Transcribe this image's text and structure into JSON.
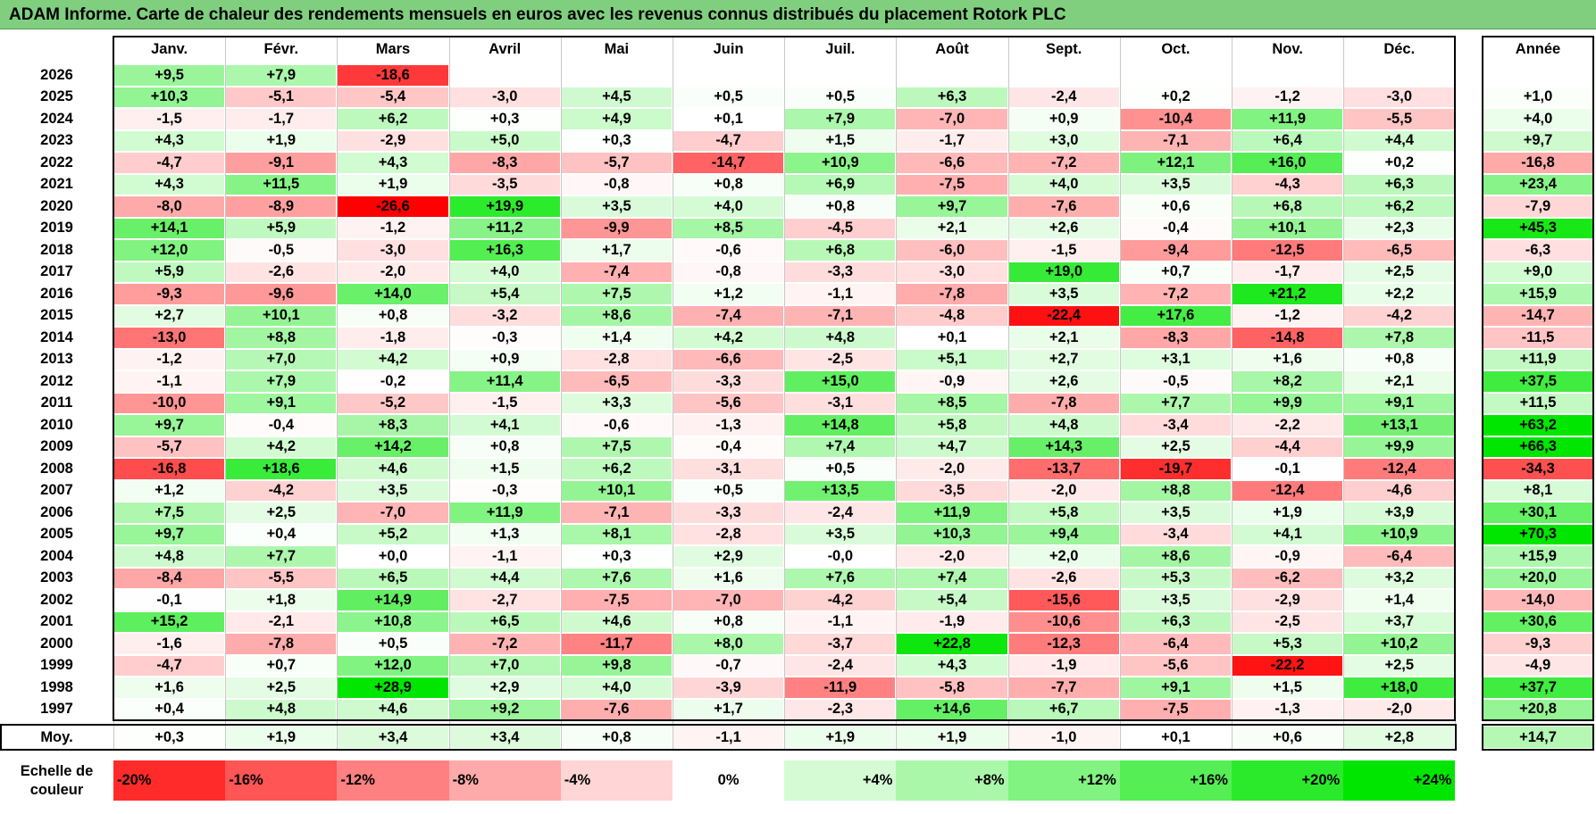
{
  "title": "ADAM Informe. Carte de chaleur des rendements mensuels en euros avec les revenus connus distribués du placement Rotork PLC",
  "chart_data": {
    "type": "heatmap",
    "title": "ADAM Informe. Carte de chaleur des rendements mensuels en euros avec les revenus connus distribués du placement Rotork PLC",
    "months": [
      "Janv.",
      "Févr.",
      "Mars",
      "Avril",
      "Mai",
      "Juin",
      "Juil.",
      "Août",
      "Sept.",
      "Oct.",
      "Nov.",
      "Déc."
    ],
    "year_header": "Année",
    "rows": [
      {
        "year": "2026",
        "values": [
          "+9,5",
          "+7,9",
          "-18,6",
          "",
          "",
          "",
          "",
          "",
          "",
          "",
          "",
          ""
        ],
        "annual": ""
      },
      {
        "year": "2025",
        "values": [
          "+10,3",
          "-5,1",
          "-5,4",
          "-3,0",
          "+4,5",
          "+0,5",
          "+0,5",
          "+6,3",
          "-2,4",
          "+0,2",
          "-1,2",
          "-3,0"
        ],
        "annual": "+1,0"
      },
      {
        "year": "2024",
        "values": [
          "-1,5",
          "-1,7",
          "+6,2",
          "+0,3",
          "+4,9",
          "+0,1",
          "+7,9",
          "-7,0",
          "+0,9",
          "-10,4",
          "+11,9",
          "-5,5"
        ],
        "annual": "+4,0"
      },
      {
        "year": "2023",
        "values": [
          "+4,3",
          "+1,9",
          "-2,9",
          "+5,0",
          "+0,3",
          "-4,7",
          "+1,5",
          "-1,7",
          "+3,0",
          "-7,1",
          "+6,4",
          "+4,4"
        ],
        "annual": "+9,7"
      },
      {
        "year": "2022",
        "values": [
          "-4,7",
          "-9,1",
          "+4,3",
          "-8,3",
          "-5,7",
          "-14,7",
          "+10,9",
          "-6,6",
          "-7,2",
          "+12,1",
          "+16,0",
          "+0,2"
        ],
        "annual": "-16,8"
      },
      {
        "year": "2021",
        "values": [
          "+4,3",
          "+11,5",
          "+1,9",
          "-3,5",
          "-0,8",
          "+0,8",
          "+6,9",
          "-7,5",
          "+4,0",
          "+3,5",
          "-4,3",
          "+6,3"
        ],
        "annual": "+23,4"
      },
      {
        "year": "2020",
        "values": [
          "-8,0",
          "-8,9",
          "-26,6",
          "+19,9",
          "+3,5",
          "+4,0",
          "+0,8",
          "+9,7",
          "-7,6",
          "+0,6",
          "+6,8",
          "+6,2"
        ],
        "annual": "-7,9"
      },
      {
        "year": "2019",
        "values": [
          "+14,1",
          "+5,9",
          "-1,2",
          "+11,2",
          "-9,9",
          "+8,5",
          "-4,5",
          "+2,1",
          "+2,6",
          "-0,4",
          "+10,1",
          "+2,3"
        ],
        "annual": "+45,3"
      },
      {
        "year": "2018",
        "values": [
          "+12,0",
          "-0,5",
          "-3,0",
          "+16,3",
          "+1,7",
          "-0,6",
          "+6,8",
          "-6,0",
          "-1,5",
          "-9,4",
          "-12,5",
          "-6,5"
        ],
        "annual": "-6,3"
      },
      {
        "year": "2017",
        "values": [
          "+5,9",
          "-2,6",
          "-2,0",
          "+4,0",
          "-7,4",
          "-0,8",
          "-3,3",
          "-3,0",
          "+19,0",
          "+0,7",
          "-1,7",
          "+2,5"
        ],
        "annual": "+9,0"
      },
      {
        "year": "2016",
        "values": [
          "-9,3",
          "-9,6",
          "+14,0",
          "+5,4",
          "+7,5",
          "+1,2",
          "-1,1",
          "-7,8",
          "+3,5",
          "-7,2",
          "+21,2",
          "+2,2"
        ],
        "annual": "+15,9"
      },
      {
        "year": "2015",
        "values": [
          "+2,7",
          "+10,1",
          "+0,8",
          "-3,2",
          "+8,6",
          "-7,4",
          "-7,1",
          "-4,8",
          "-22,4",
          "+17,6",
          "-1,2",
          "-4,2"
        ],
        "annual": "-14,7"
      },
      {
        "year": "2014",
        "values": [
          "-13,0",
          "+8,8",
          "-1,8",
          "-0,3",
          "+1,4",
          "+4,2",
          "+4,8",
          "+0,1",
          "+2,1",
          "-8,3",
          "-14,8",
          "+7,8"
        ],
        "annual": "-11,5"
      },
      {
        "year": "2013",
        "values": [
          "-1,2",
          "+7,0",
          "+4,2",
          "+0,9",
          "-2,8",
          "-6,6",
          "-2,5",
          "+5,1",
          "+2,7",
          "+3,1",
          "+1,6",
          "+0,8"
        ],
        "annual": "+11,9"
      },
      {
        "year": "2012",
        "values": [
          "-1,1",
          "+7,9",
          "-0,2",
          "+11,4",
          "-6,5",
          "-3,3",
          "+15,0",
          "-0,9",
          "+2,6",
          "-0,5",
          "+8,2",
          "+2,1"
        ],
        "annual": "+37,5"
      },
      {
        "year": "2011",
        "values": [
          "-10,0",
          "+9,1",
          "-5,2",
          "-1,5",
          "+3,3",
          "-5,6",
          "-3,1",
          "+8,5",
          "-7,8",
          "+7,7",
          "+9,9",
          "+9,1"
        ],
        "annual": "+11,5"
      },
      {
        "year": "2010",
        "values": [
          "+9,7",
          "-0,4",
          "+8,3",
          "+4,1",
          "-0,6",
          "-1,3",
          "+14,8",
          "+5,8",
          "+4,8",
          "-3,4",
          "-2,2",
          "+13,1"
        ],
        "annual": "+63,2"
      },
      {
        "year": "2009",
        "values": [
          "-5,7",
          "+4,2",
          "+14,2",
          "+0,8",
          "+7,5",
          "-0,4",
          "+7,4",
          "+4,7",
          "+14,3",
          "+2,5",
          "-4,4",
          "+9,9"
        ],
        "annual": "+66,3"
      },
      {
        "year": "2008",
        "values": [
          "-16,8",
          "+18,6",
          "+4,6",
          "+1,5",
          "+6,2",
          "-3,1",
          "+0,5",
          "-2,0",
          "-13,7",
          "-19,7",
          "-0,1",
          "-12,4"
        ],
        "annual": "-34,3"
      },
      {
        "year": "2007",
        "values": [
          "+1,2",
          "-4,2",
          "+3,5",
          "-0,3",
          "+10,1",
          "+0,5",
          "+13,5",
          "-3,5",
          "-2,0",
          "+8,8",
          "-12,4",
          "-4,6"
        ],
        "annual": "+8,1"
      },
      {
        "year": "2006",
        "values": [
          "+7,5",
          "+2,5",
          "-7,0",
          "+11,9",
          "-7,1",
          "-3,3",
          "-2,4",
          "+11,9",
          "+5,8",
          "+3,5",
          "+1,9",
          "+3,9"
        ],
        "annual": "+30,1"
      },
      {
        "year": "2005",
        "values": [
          "+9,7",
          "+0,4",
          "+5,2",
          "+1,3",
          "+8,1",
          "-2,8",
          "+3,5",
          "+10,3",
          "+9,4",
          "-3,4",
          "+4,1",
          "+10,9"
        ],
        "annual": "+70,3"
      },
      {
        "year": "2004",
        "values": [
          "+4,8",
          "+7,7",
          "+0,0",
          "-1,1",
          "+0,3",
          "+2,9",
          "-0,0",
          "-2,0",
          "+2,0",
          "+8,6",
          "-0,9",
          "-6,4"
        ],
        "annual": "+15,9"
      },
      {
        "year": "2003",
        "values": [
          "-8,4",
          "-5,5",
          "+6,5",
          "+4,4",
          "+7,6",
          "+1,6",
          "+7,6",
          "+7,4",
          "-2,6",
          "+5,3",
          "-6,2",
          "+3,2"
        ],
        "annual": "+20,0"
      },
      {
        "year": "2002",
        "values": [
          "-0,1",
          "+1,8",
          "+14,9",
          "-2,7",
          "-7,5",
          "-7,0",
          "-4,2",
          "+5,4",
          "-15,6",
          "+3,5",
          "-2,9",
          "+1,4"
        ],
        "annual": "-14,0"
      },
      {
        "year": "2001",
        "values": [
          "+15,2",
          "-2,1",
          "+10,8",
          "+6,5",
          "+4,6",
          "+0,8",
          "-1,1",
          "-1,9",
          "-10,6",
          "+6,3",
          "-2,5",
          "+3,7"
        ],
        "annual": "+30,6"
      },
      {
        "year": "2000",
        "values": [
          "-1,6",
          "-7,8",
          "+0,5",
          "-7,2",
          "-11,7",
          "+8,0",
          "-3,7",
          "+22,8",
          "-12,3",
          "-6,4",
          "+5,3",
          "+10,2"
        ],
        "annual": "-9,3"
      },
      {
        "year": "1999",
        "values": [
          "-4,7",
          "+0,7",
          "+12,0",
          "+7,0",
          "+9,8",
          "-0,7",
          "-2,4",
          "+4,3",
          "-1,9",
          "-5,6",
          "-22,2",
          "+2,5"
        ],
        "annual": "-4,9"
      },
      {
        "year": "1998",
        "values": [
          "+1,6",
          "+2,5",
          "+28,9",
          "+2,9",
          "+4,0",
          "-3,9",
          "-11,9",
          "-5,8",
          "-7,7",
          "+9,1",
          "+1,5",
          "+18,0"
        ],
        "annual": "+37,7"
      },
      {
        "year": "1997",
        "values": [
          "+0,4",
          "+4,8",
          "+4,6",
          "+9,2",
          "-7,6",
          "+1,7",
          "-2,3",
          "+14,6",
          "+6,7",
          "-7,5",
          "-1,3",
          "-2,0"
        ],
        "annual": "+20,8"
      }
    ],
    "average": {
      "label": "Moy.",
      "values": [
        "+0,3",
        "+1,9",
        "+3,4",
        "+3,4",
        "+0,8",
        "-1,1",
        "+1,9",
        "+1,9",
        "-1,0",
        "+0,1",
        "+0,6",
        "+2,8"
      ],
      "annual": "+14,7"
    },
    "scale": {
      "label_line1": "Echelle de",
      "label_line2": "couleur",
      "stops": [
        {
          "label": "-20%",
          "value": -20
        },
        {
          "label": "-16%",
          "value": -16
        },
        {
          "label": "-12%",
          "value": -12
        },
        {
          "label": "-8%",
          "value": -8
        },
        {
          "label": "-4%",
          "value": -4
        },
        {
          "label": "0%",
          "value": 0
        },
        {
          "label": "+4%",
          "value": 4
        },
        {
          "label": "+8%",
          "value": 8
        },
        {
          "label": "+12%",
          "value": 12
        },
        {
          "label": "+16%",
          "value": 16
        },
        {
          "label": "+20%",
          "value": 20
        },
        {
          "label": "+24%",
          "value": 24
        }
      ]
    },
    "colors": {
      "negative_max": "#ff0000",
      "neutral": "#ffffff",
      "positive_max": "#00e600",
      "title_bar": "#7fcf7f"
    }
  }
}
